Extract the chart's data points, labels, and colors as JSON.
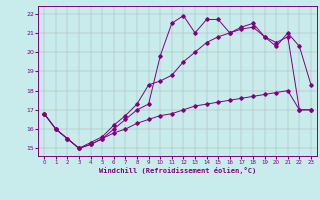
{
  "title": "",
  "xlabel": "Windchill (Refroidissement éolien,°C)",
  "ylabel": "",
  "bg_color": "#c8ecec",
  "line_color": "#800080",
  "grid_color": "#b0b0b0",
  "xlim": [
    -0.5,
    23.5
  ],
  "ylim": [
    14.6,
    22.4
  ],
  "xticks": [
    0,
    1,
    2,
    3,
    4,
    5,
    6,
    7,
    8,
    9,
    10,
    11,
    12,
    13,
    14,
    15,
    16,
    17,
    18,
    19,
    20,
    21,
    22,
    23
  ],
  "yticks": [
    15,
    16,
    17,
    18,
    19,
    20,
    21,
    22
  ],
  "line1_x": [
    0,
    1,
    2,
    3,
    4,
    5,
    6,
    7,
    8,
    9,
    10,
    11,
    12,
    13,
    14,
    15,
    16,
    17,
    18,
    19,
    20,
    21,
    22,
    23
  ],
  "line1_y": [
    16.8,
    16.0,
    15.5,
    15.0,
    15.2,
    15.5,
    16.0,
    16.5,
    17.0,
    17.3,
    19.8,
    21.5,
    21.9,
    21.0,
    21.7,
    21.7,
    21.0,
    21.3,
    21.5,
    20.8,
    20.3,
    21.0,
    20.3,
    18.3
  ],
  "line2_x": [
    0,
    1,
    2,
    3,
    4,
    5,
    6,
    7,
    8,
    9,
    10,
    11,
    12,
    13,
    14,
    15,
    16,
    17,
    18,
    19,
    20,
    21,
    22,
    23
  ],
  "line2_y": [
    16.8,
    16.0,
    15.5,
    15.0,
    15.3,
    15.6,
    16.2,
    16.7,
    17.3,
    18.3,
    18.5,
    18.8,
    19.5,
    20.0,
    20.5,
    20.8,
    21.0,
    21.2,
    21.3,
    20.8,
    20.5,
    20.8,
    17.0,
    17.0
  ],
  "line3_x": [
    0,
    1,
    2,
    3,
    4,
    5,
    6,
    7,
    8,
    9,
    10,
    11,
    12,
    13,
    14,
    15,
    16,
    17,
    18,
    19,
    20,
    21,
    22,
    23
  ],
  "line3_y": [
    16.8,
    16.0,
    15.5,
    15.0,
    15.2,
    15.5,
    15.8,
    16.0,
    16.3,
    16.5,
    16.7,
    16.8,
    17.0,
    17.2,
    17.3,
    17.4,
    17.5,
    17.6,
    17.7,
    17.8,
    17.9,
    18.0,
    17.0,
    17.0
  ],
  "marker": "D",
  "markersize": 1.8,
  "linewidth": 0.7
}
